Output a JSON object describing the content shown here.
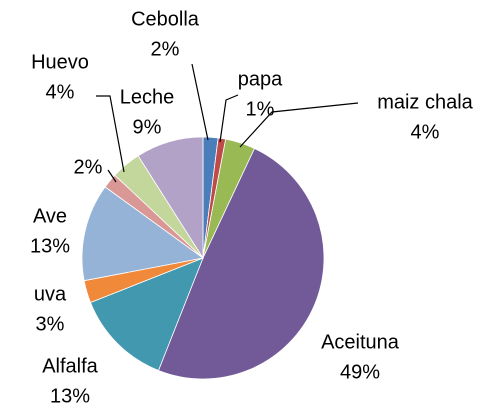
{
  "chart_data": {
    "type": "pie",
    "categories": [
      "Cebolla",
      "papa",
      "maiz chala",
      "Aceituna",
      "Alfalfa",
      "uva",
      "Ave",
      null,
      "Huevo",
      "Leche"
    ],
    "values": [
      2,
      1,
      4,
      49,
      13,
      3,
      13,
      2,
      4,
      9
    ],
    "value_labels": [
      "2%",
      "1%",
      "4%",
      "49%",
      "13%",
      "3%",
      "13%",
      "2%",
      "4%",
      "9%"
    ],
    "colors": [
      "#4a7ebb",
      "#be4b48",
      "#98b954",
      "#725a99",
      "#4198af",
      "#f08a3a",
      "#95b3d7",
      "#d99795",
      "#c3d69b",
      "#b3a2c7"
    ]
  }
}
